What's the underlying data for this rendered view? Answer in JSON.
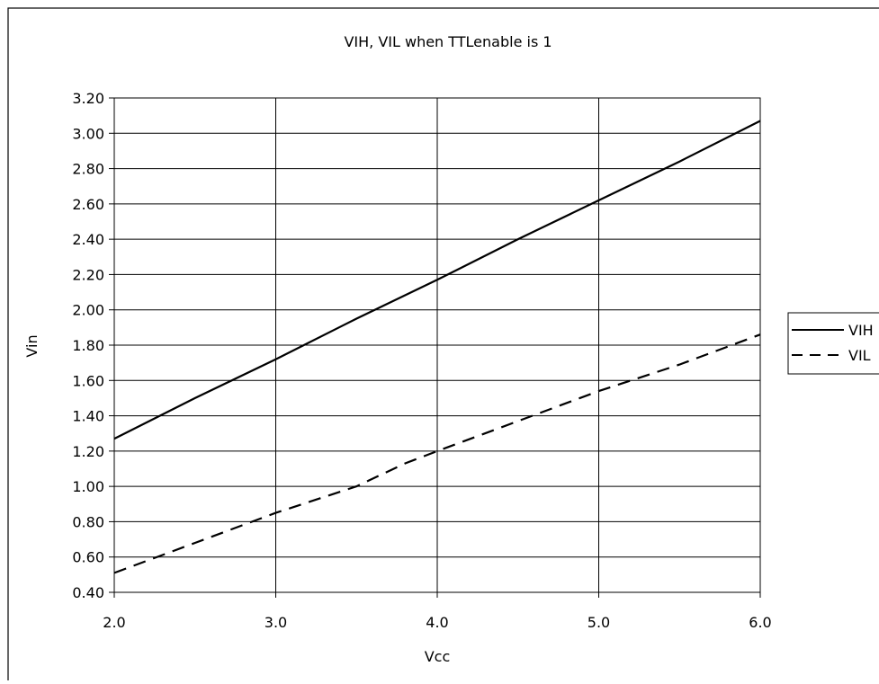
{
  "chart_data": {
    "type": "line",
    "title": "VIH, VIL when TTLenable is 1",
    "xlabel": "Vcc",
    "ylabel": "Vin",
    "xlim": [
      2.0,
      6.0
    ],
    "ylim": [
      0.4,
      3.2
    ],
    "x_ticks": [
      "2.0",
      "3.0",
      "4.0",
      "5.0",
      "6.0"
    ],
    "y_ticks": [
      "0.40",
      "0.60",
      "0.80",
      "1.00",
      "1.20",
      "1.40",
      "1.60",
      "1.80",
      "2.00",
      "2.20",
      "2.40",
      "2.60",
      "2.80",
      "3.00",
      "3.20"
    ],
    "grid": true,
    "legend_position": "right",
    "series": [
      {
        "name": "VIH",
        "style": "solid",
        "color": "#000000",
        "points": [
          [
            2.0,
            1.27
          ],
          [
            2.5,
            1.5
          ],
          [
            3.0,
            1.72
          ],
          [
            3.5,
            1.95
          ],
          [
            4.0,
            2.17
          ],
          [
            4.5,
            2.4
          ],
          [
            5.0,
            2.62
          ],
          [
            5.5,
            2.84
          ],
          [
            6.0,
            3.07
          ]
        ]
      },
      {
        "name": "VIL",
        "style": "dashed",
        "color": "#000000",
        "points": [
          [
            2.0,
            0.51
          ],
          [
            2.5,
            0.68
          ],
          [
            3.0,
            0.85
          ],
          [
            3.5,
            1.0
          ],
          [
            3.8,
            1.13
          ],
          [
            4.0,
            1.2
          ],
          [
            4.5,
            1.37
          ],
          [
            5.0,
            1.54
          ],
          [
            5.5,
            1.69
          ],
          [
            6.0,
            1.86
          ]
        ]
      }
    ]
  }
}
